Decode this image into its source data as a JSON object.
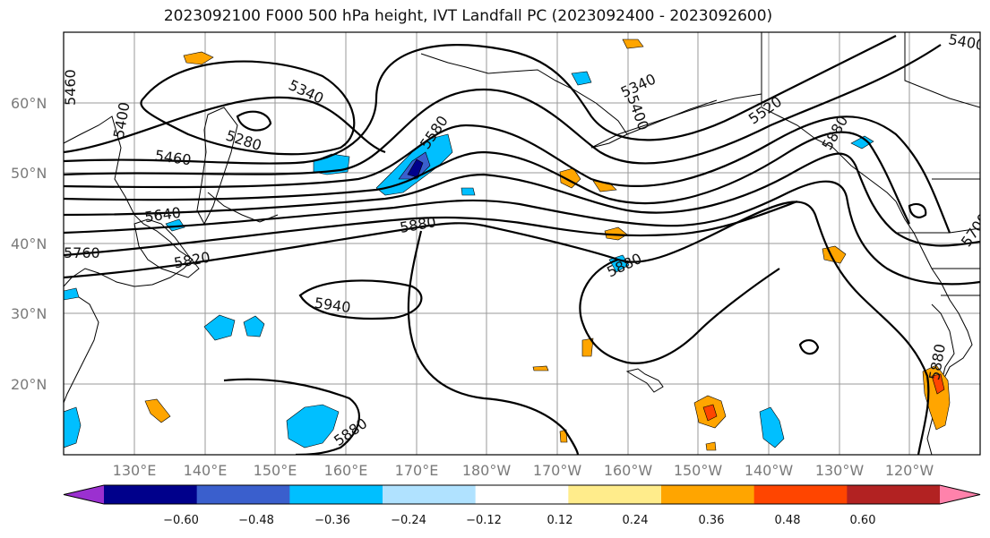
{
  "title": "2023092100 F000 500 hPa height, IVT Landfall PC (2023092400 - 2023092600)",
  "lat_labels": [
    "60°N",
    "50°N",
    "40°N",
    "30°N",
    "20°N"
  ],
  "lon_labels": [
    "130°E",
    "140°E",
    "150°E",
    "160°E",
    "170°E",
    "180°W",
    "170°W",
    "160°W",
    "150°W",
    "140°W",
    "130°W",
    "120°W"
  ],
  "colorbar": {
    "colors": [
      "#9b30d0",
      "#00008b",
      "#3a5fcd",
      "#00bfff",
      "#b0e2ff",
      "#ffffff",
      "#ffec8b",
      "#ffa500",
      "#ff4500",
      "#b22222",
      "#ff82ab"
    ],
    "tick_labels": [
      "−0.60",
      "−0.48",
      "−0.36",
      "−0.24",
      "−0.12",
      "0.12",
      "0.24",
      "0.36",
      "0.48",
      "0.60"
    ]
  },
  "contour_labels": [
    "5460",
    "5400",
    "5340",
    "5280",
    "5460",
    "5640",
    "5760",
    "5820",
    "5880",
    "5940",
    "5580",
    "5340",
    "5400",
    "5520",
    "5880",
    "5880",
    "5880",
    "5400",
    "5700",
    "5880"
  ]
}
